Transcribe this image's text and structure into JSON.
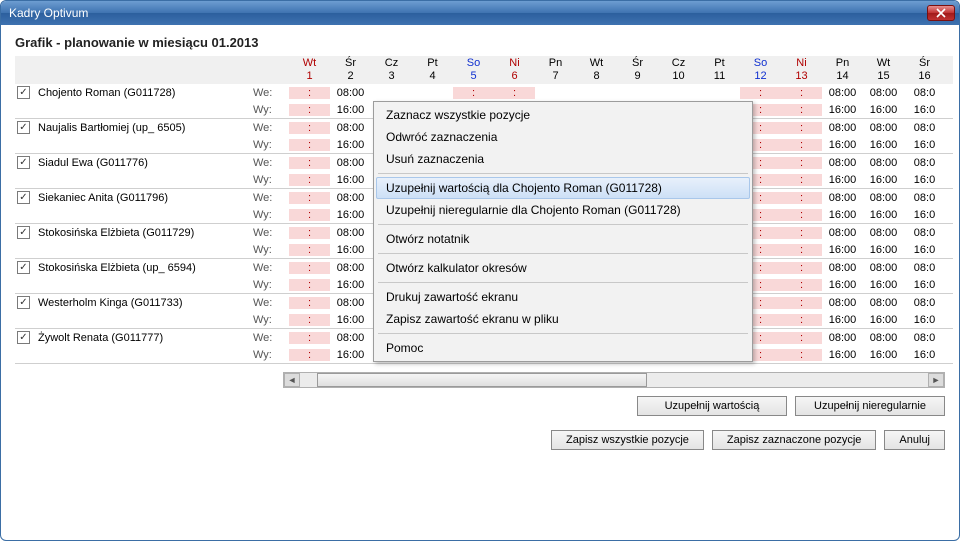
{
  "window": {
    "title": "Kadry Optivum"
  },
  "header": {
    "title": "Grafik - planowanie w miesiącu 01.2013"
  },
  "days": [
    {
      "dow": "Wt",
      "num": "1",
      "type": "hol"
    },
    {
      "dow": "Śr",
      "num": "2",
      "type": "wd"
    },
    {
      "dow": "Cz",
      "num": "3",
      "type": "wd"
    },
    {
      "dow": "Pt",
      "num": "4",
      "type": "wd"
    },
    {
      "dow": "So",
      "num": "5",
      "type": "sat"
    },
    {
      "dow": "Ni",
      "num": "6",
      "type": "sun"
    },
    {
      "dow": "Pn",
      "num": "7",
      "type": "wd"
    },
    {
      "dow": "Wt",
      "num": "8",
      "type": "wd"
    },
    {
      "dow": "Śr",
      "num": "9",
      "type": "wd"
    },
    {
      "dow": "Cz",
      "num": "10",
      "type": "wd"
    },
    {
      "dow": "Pt",
      "num": "11",
      "type": "wd"
    },
    {
      "dow": "So",
      "num": "12",
      "type": "sat"
    },
    {
      "dow": "Ni",
      "num": "13",
      "type": "sun"
    },
    {
      "dow": "Pn",
      "num": "14",
      "type": "wd"
    },
    {
      "dow": "Wt",
      "num": "15",
      "type": "wd"
    },
    {
      "dow": "Śr",
      "num": "16",
      "type": "wd"
    }
  ],
  "row_labels": {
    "we": "We:",
    "wy": "Wy:"
  },
  "times": {
    "in": "08:00",
    "out": "16:00",
    "in_cut": "08:0",
    "out_cut": "16:0"
  },
  "employees": [
    {
      "name": "Chojento Roman (G011728)"
    },
    {
      "name": "Naujalis Bartłomiej (up_ 6505)"
    },
    {
      "name": "Siadul Ewa (G011776)"
    },
    {
      "name": "Siekaniec Anita (G011796)"
    },
    {
      "name": "Stokosińska Elżbieta (G011729)"
    },
    {
      "name": "Stokosińska Elżbieta (up_ 6594)"
    },
    {
      "name": "Westerholm Kinga (G011733)"
    },
    {
      "name": "Żywolt Renata (G011777)"
    }
  ],
  "context_menu": {
    "items": [
      "Zaznacz wszystkie pozycje",
      "Odwróć zaznaczenia",
      "Usuń zaznaczenia",
      "-",
      "Uzupełnij wartością dla Chojento Roman (G011728)",
      "Uzupełnij nieregularnie dla Chojento Roman (G011728)",
      "-",
      "Otwórz notatnik",
      "-",
      "Otwórz kalkulator okresów",
      "-",
      "Drukuj zawartość ekranu",
      "Zapisz zawartość ekranu w pliku",
      "-",
      "Pomoc"
    ],
    "highlight_index": 4
  },
  "buttons": {
    "fill_value": "Uzupełnij wartością",
    "fill_irregular": "Uzupełnij nieregularnie",
    "save_all": "Zapisz wszystkie pozycje",
    "save_selected": "Zapisz zaznaczone pozycje",
    "cancel": "Anuluj"
  },
  "colors": {
    "weekend_bg": "#f9d8d8",
    "weekend_fg": "#b00000",
    "sat_header": "#1030d0",
    "divider": "#cfcfcf"
  }
}
